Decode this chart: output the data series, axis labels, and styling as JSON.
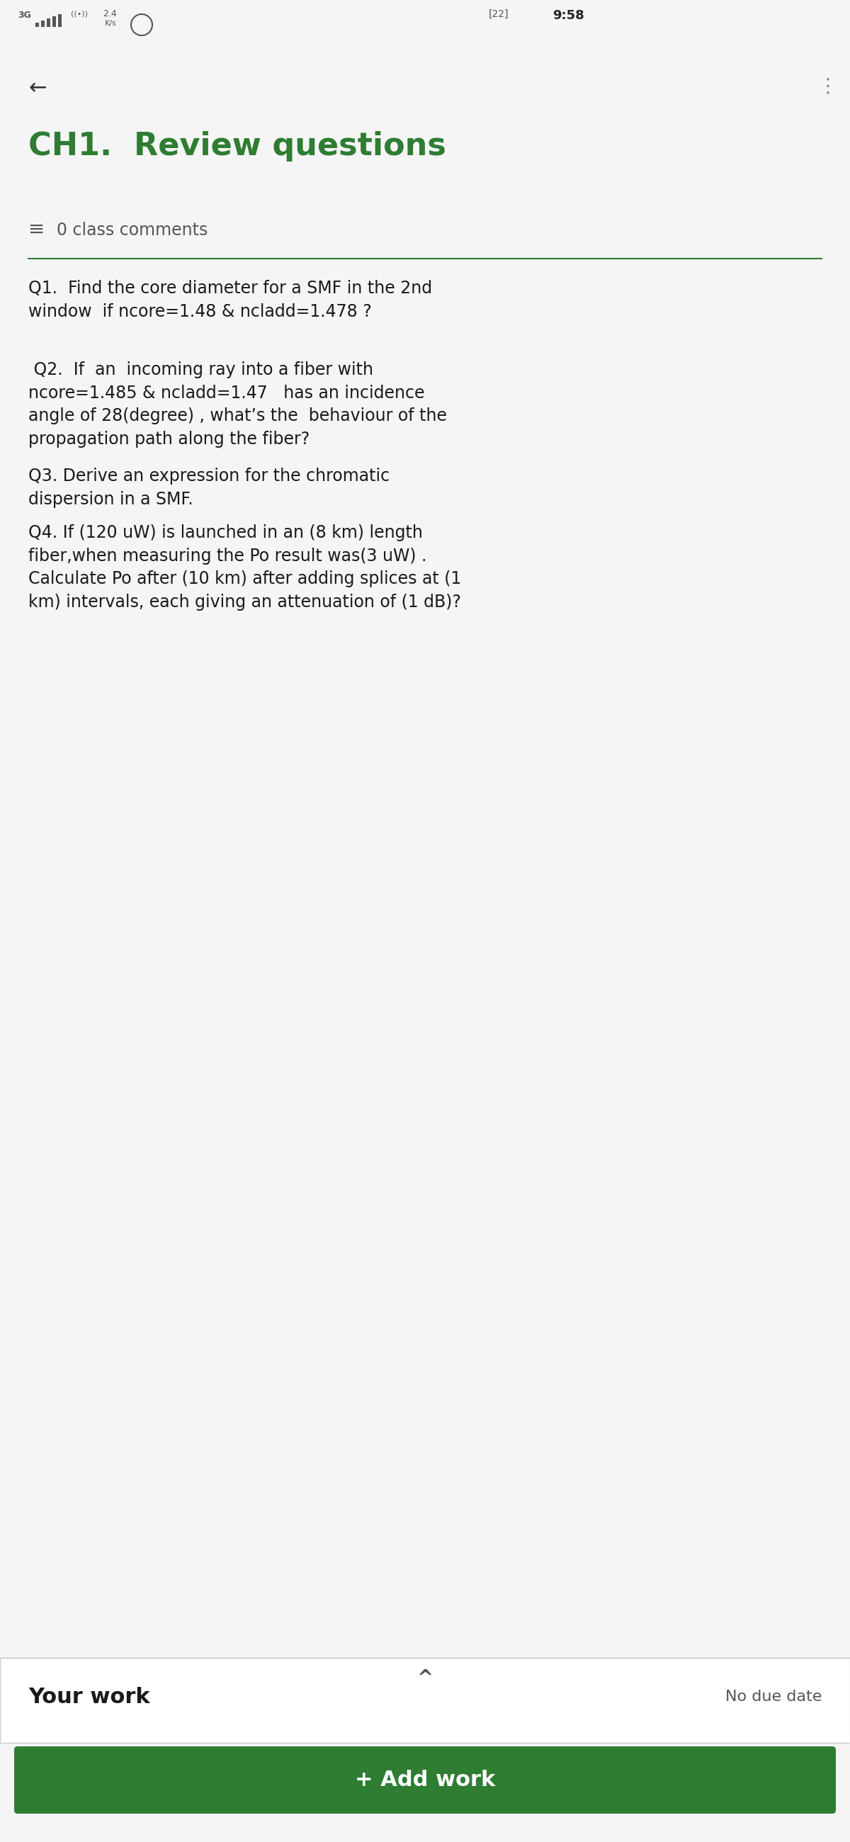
{
  "bg_color": "#f5f5f5",
  "status_bar_text_left": "3G  2.4\n    K/s",
  "status_bar_text_right": "22  9:58",
  "back_arrow": "←",
  "dots_menu": "⋮",
  "title": "CH1.  Review questions",
  "title_color": "#2e7d32",
  "comments_icon": "≡",
  "comments_text": "0 class comments",
  "divider_color": "#2e7d32",
  "q1": "Q1.  Find the core diameter for a SMF in the 2nd\nwindow  if ncore=1.48 & ncladd=1.478 ?",
  "q2": " Q2.  If  an  incoming ray into a fiber with\nncore=1.485 & ncladd=1.47   has an incidence\nangle of 28(degree) , what’s the  behaviour of the\npropagation path along the fiber?",
  "q3": "Q3. Derive an expression for the chromatic\ndispersion in a SMF.",
  "q4": "Q4. If (120 uW) is launched in an (8 km) length\nfiber,when measuring the Po result was(3 uW) .\nCalculate Po after (10 km) after adding splices at (1\nkm) intervals, each giving an attenuation of (1 dB)?",
  "your_work_text": "Your work",
  "no_due_date_text": "No due date",
  "add_work_text": "+ Add work",
  "add_work_bg": "#2e7d32",
  "add_work_text_color": "#ffffff",
  "body_text_color": "#1a1a1a",
  "secondary_text_color": "#555555",
  "panel_bg": "#ffffff",
  "separator_color": "#cccccc"
}
